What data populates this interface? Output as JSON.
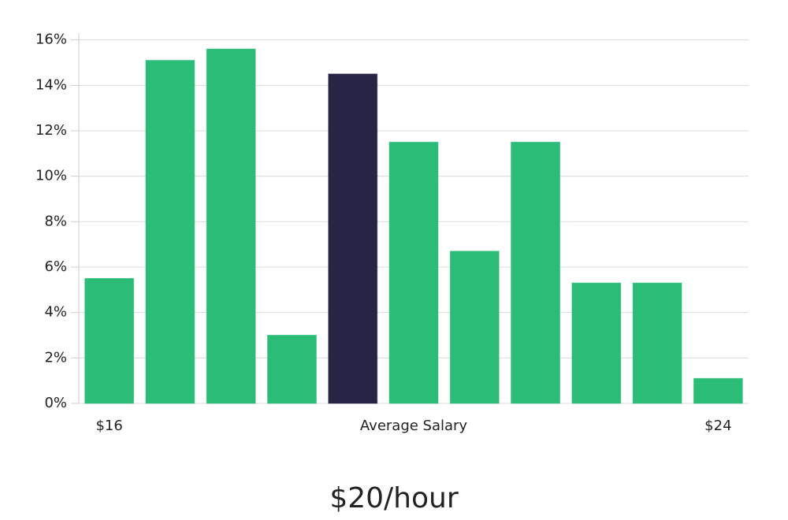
{
  "chart_data": {
    "type": "bar",
    "caption": "$20/hour",
    "x_label": "Average Salary",
    "categories": [
      "$16",
      null,
      null,
      null,
      null,
      null,
      null,
      null,
      null,
      null,
      "$24"
    ],
    "values": [
      5.5,
      15.1,
      15.6,
      3.0,
      14.5,
      11.5,
      6.7,
      11.5,
      5.3,
      5.3,
      1.1
    ],
    "colors": [
      "#2bbd78",
      "#2bbd78",
      "#2bbd78",
      "#2bbd78",
      "#272445",
      "#2bbd78",
      "#2bbd78",
      "#2bbd78",
      "#2bbd78",
      "#2bbd78",
      "#2bbd78"
    ],
    "ylim": [
      0,
      16.3
    ],
    "yticks": [
      {
        "value": 0,
        "label": "0%"
      },
      {
        "value": 2,
        "label": "2%"
      },
      {
        "value": 4,
        "label": "4%"
      },
      {
        "value": 6,
        "label": "6%"
      },
      {
        "value": 8,
        "label": "8%"
      },
      {
        "value": 10,
        "label": "10%"
      },
      {
        "value": 12,
        "label": "12%"
      },
      {
        "value": 14,
        "label": "14%"
      },
      {
        "value": 16,
        "label": "16%"
      }
    ],
    "grid": true
  }
}
